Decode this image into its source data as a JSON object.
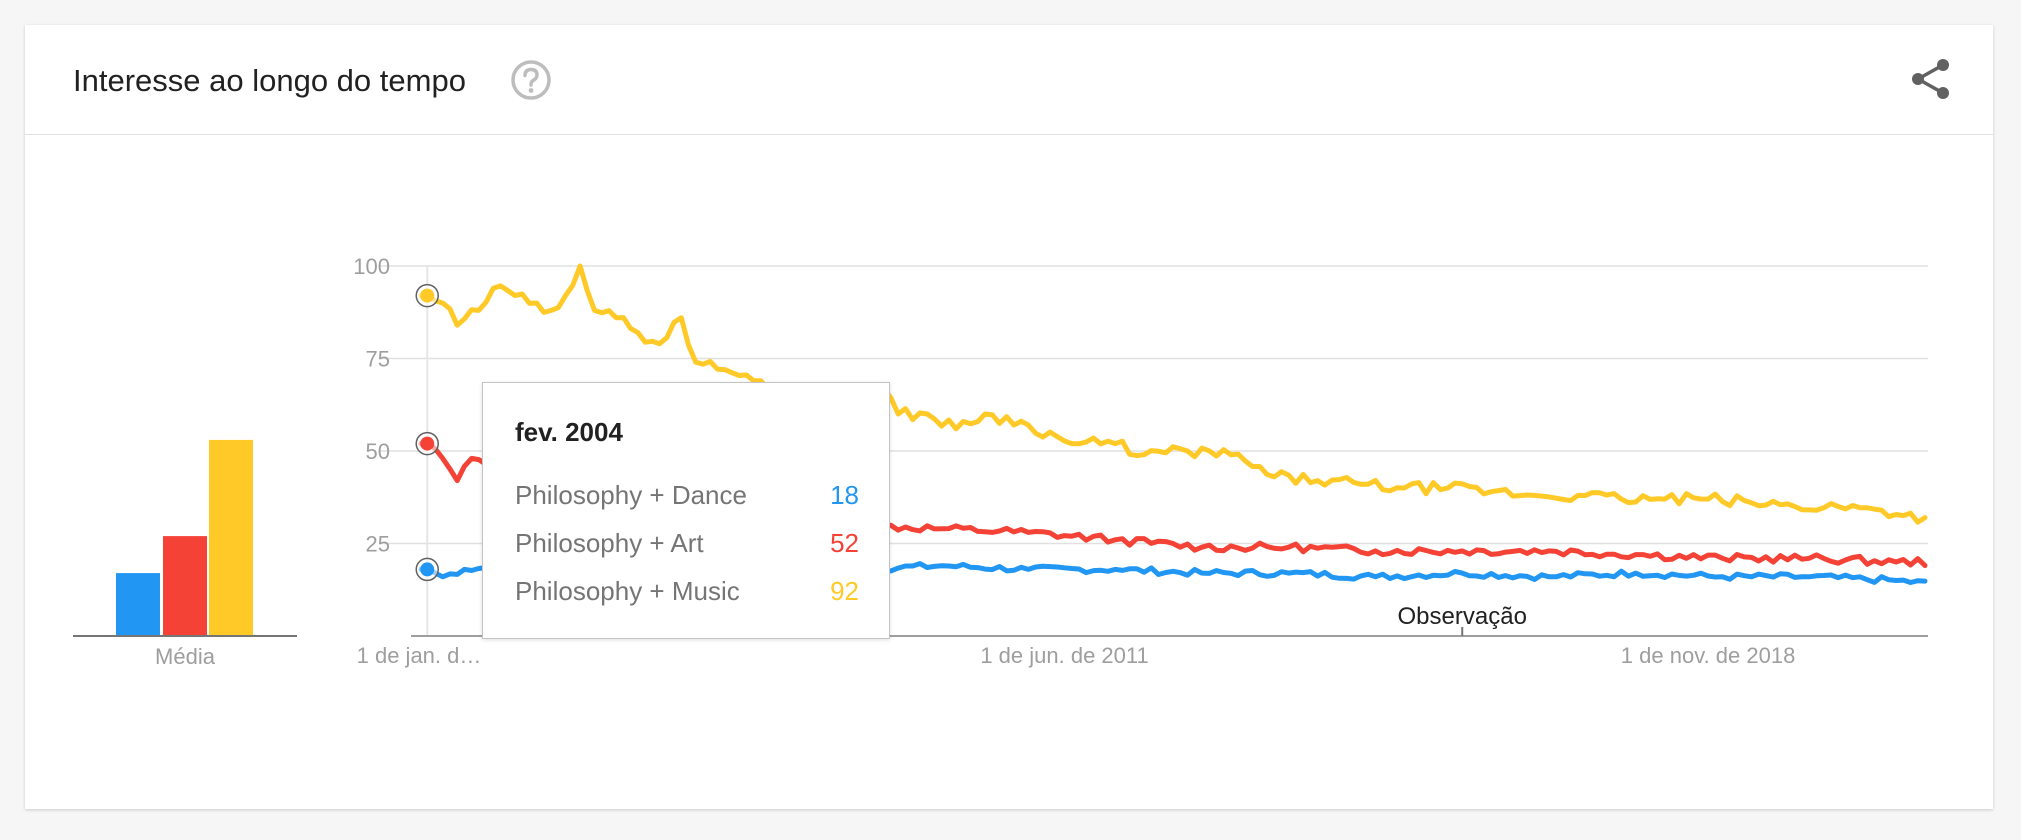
{
  "header": {
    "title": "Interesse ao longo do tempo",
    "help_icon": "help-circle-icon",
    "share_icon": "share-icon"
  },
  "colors": {
    "dance": "#2196f3",
    "art": "#f44336",
    "music": "#ffca28"
  },
  "tooltip": {
    "date": "fev. 2004",
    "rows": [
      {
        "label": "Philosophy + Dance",
        "value": "18",
        "color": "#2196f3"
      },
      {
        "label": "Philosophy + Art",
        "value": "52",
        "color": "#f44336"
      },
      {
        "label": "Philosophy + Music",
        "value": "92",
        "color": "#ffca28"
      }
    ]
  },
  "chart_data": [
    {
      "type": "bar",
      "xlabel": "Média",
      "series": [
        {
          "name": "Philosophy + Dance",
          "value": 17
        },
        {
          "name": "Philosophy + Art",
          "value": 27
        },
        {
          "name": "Philosophy + Music",
          "value": 53
        }
      ],
      "ylim": [
        0,
        100
      ]
    },
    {
      "type": "line",
      "x_start": "2004-01",
      "x_end": "2021-05",
      "x_interval": "month",
      "ylim": [
        0,
        100
      ],
      "y_ticks": [
        25,
        50,
        75,
        100
      ],
      "x_tick_labels": [
        {
          "label": "1 de jan. d…",
          "date": "2004-01"
        },
        {
          "label": "1 de jun. de 2011",
          "date": "2011-06"
        },
        {
          "label": "1 de nov. de 2018",
          "date": "2018-11"
        }
      ],
      "annotation": {
        "label": "Observação",
        "date": "2016-01"
      },
      "highlight_date": "2004-02",
      "grid": true,
      "series": [
        {
          "name": "Philosophy + Dance",
          "color": "#2196f3",
          "keypoints": [
            [
              0,
              18
            ],
            [
              1,
              18
            ],
            [
              3,
              16
            ],
            [
              6,
              18
            ],
            [
              12,
              19
            ],
            [
              24,
              18
            ],
            [
              36,
              18
            ],
            [
              48,
              17
            ],
            [
              60,
              18
            ],
            [
              72,
              19
            ],
            [
              84,
              18
            ],
            [
              96,
              18
            ],
            [
              108,
              17
            ],
            [
              120,
              17
            ],
            [
              132,
              16
            ],
            [
              144,
              17
            ],
            [
              156,
              16
            ],
            [
              168,
              17
            ],
            [
              180,
              16
            ],
            [
              192,
              16
            ],
            [
              204,
              15
            ],
            [
              216,
              13
            ],
            [
              220,
              15
            ],
            [
              228,
              16
            ],
            [
              232,
              15
            ]
          ]
        },
        {
          "name": "Philosophy + Art",
          "color": "#f44336",
          "keypoints": [
            [
              0,
              52
            ],
            [
              1,
              52
            ],
            [
              3,
              48
            ],
            [
              5,
              42
            ],
            [
              7,
              48
            ],
            [
              12,
              46
            ],
            [
              18,
              44
            ],
            [
              24,
              38
            ],
            [
              30,
              36
            ],
            [
              36,
              34
            ],
            [
              48,
              32
            ],
            [
              60,
              30
            ],
            [
              72,
              29
            ],
            [
              84,
              28
            ],
            [
              96,
              26
            ],
            [
              108,
              24
            ],
            [
              120,
              24
            ],
            [
              132,
              23
            ],
            [
              144,
              23
            ],
            [
              156,
              23
            ],
            [
              168,
              22
            ],
            [
              180,
              21
            ],
            [
              192,
              21
            ],
            [
              204,
              20
            ],
            [
              216,
              20
            ],
            [
              224,
              19
            ],
            [
              232,
              20
            ]
          ]
        },
        {
          "name": "Philosophy + Music",
          "color": "#ffca28",
          "keypoints": [
            [
              0,
              92
            ],
            [
              1,
              92
            ],
            [
              3,
              90
            ],
            [
              5,
              84
            ],
            [
              8,
              88
            ],
            [
              10,
              94
            ],
            [
              13,
              92
            ],
            [
              16,
              90
            ],
            [
              18,
              88
            ],
            [
              20,
              92
            ],
            [
              22,
              100
            ],
            [
              24,
              88
            ],
            [
              27,
              86
            ],
            [
              30,
              82
            ],
            [
              33,
              79
            ],
            [
              36,
              86
            ],
            [
              38,
              74
            ],
            [
              42,
              72
            ],
            [
              46,
              69
            ],
            [
              50,
              67
            ],
            [
              54,
              66
            ],
            [
              58,
              65
            ],
            [
              61,
              60
            ],
            [
              64,
              67
            ],
            [
              66,
              60
            ],
            [
              70,
              60
            ],
            [
              74,
              56
            ],
            [
              78,
              60
            ],
            [
              84,
              57
            ],
            [
              90,
              52
            ],
            [
              96,
              52
            ],
            [
              100,
              49
            ],
            [
              106,
              50
            ],
            [
              112,
              49
            ],
            [
              118,
              43
            ],
            [
              124,
              42
            ],
            [
              130,
              41
            ],
            [
              136,
              40
            ],
            [
              142,
              40
            ],
            [
              148,
              39
            ],
            [
              154,
              38
            ],
            [
              160,
              38
            ],
            [
              166,
              37
            ],
            [
              172,
              37
            ],
            [
              178,
              37
            ],
            [
              184,
              36
            ],
            [
              190,
              35
            ],
            [
              196,
              35
            ],
            [
              202,
              34
            ],
            [
              208,
              32
            ],
            [
              214,
              31
            ],
            [
              220,
              30
            ],
            [
              226,
              29
            ],
            [
              232,
              29
            ]
          ]
        }
      ]
    }
  ]
}
